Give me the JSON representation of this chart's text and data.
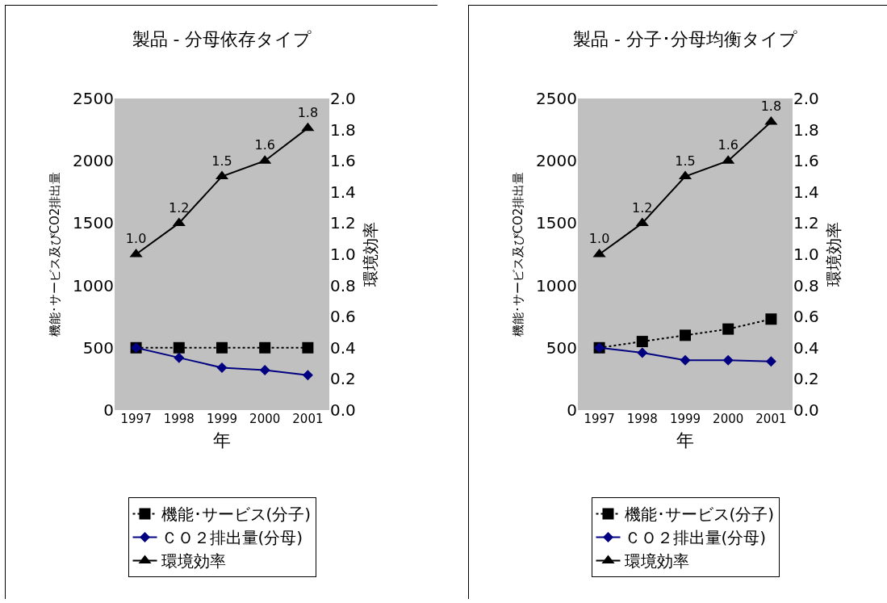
{
  "chart_data": [
    {
      "type": "line",
      "title": "製品 - 分母依存タイプ",
      "xlabel": "年",
      "ylabel": "機能･サービス及びCO2排出量",
      "y2label": "環境効率",
      "categories": [
        "1997",
        "1998",
        "1999",
        "2000",
        "2001"
      ],
      "ylim": [
        0,
        2500
      ],
      "yticks": [
        0,
        500,
        1000,
        1500,
        2000,
        2500
      ],
      "y2lim": [
        0,
        2
      ],
      "y2ticks": [
        {
          "value": 0,
          "label": "0.0"
        },
        0.2,
        0.4,
        0.6,
        0.8,
        {
          "value": 1,
          "label": "1.0"
        },
        1.2,
        1.4,
        1.6,
        1.8,
        {
          "value": 2,
          "label": "2.0"
        }
      ],
      "grid": false,
      "legend": "bottom",
      "series": [
        {
          "name": "機能･サービス(分子)",
          "color": "#000000",
          "marker": "square",
          "line_style": "dotted",
          "values": [
            500,
            500,
            500,
            500,
            500
          ]
        },
        {
          "name": "ＣＯ２排出量(分母)",
          "color": "#000080",
          "marker": "diamond",
          "line_style": "solid",
          "values": [
            500,
            420,
            340,
            320,
            280
          ]
        },
        {
          "name": "環境効率",
          "color": "#000000",
          "marker": "triangle",
          "line_style": "solid",
          "axis": "y2",
          "values": [
            1.0,
            1.2,
            1.5,
            1.6,
            1.81
          ],
          "value_labels": [
            "1.0",
            "1.2",
            "1.5",
            "1.6",
            "1.8"
          ]
        }
      ]
    },
    {
      "type": "line",
      "title": "製品 - 分子･分母均衡タイプ",
      "xlabel": "年",
      "ylabel": "機能･サービス及びCO2排出量",
      "y2label": "環境効率",
      "categories": [
        "1997",
        "1998",
        "1999",
        "2000",
        "2001"
      ],
      "ylim": [
        0,
        2500
      ],
      "yticks": [
        0,
        500,
        1000,
        1500,
        2000,
        2500
      ],
      "y2lim": [
        0,
        2
      ],
      "y2ticks": [
        {
          "value": 0,
          "label": "0.0"
        },
        0.2,
        0.4,
        0.6,
        0.8,
        {
          "value": 1,
          "label": "1.0"
        },
        1.2,
        1.4,
        1.6,
        1.8,
        {
          "value": 2,
          "label": "2.0"
        }
      ],
      "grid": false,
      "legend": "bottom",
      "series": [
        {
          "name": "機能･サービス(分子)",
          "color": "#000000",
          "marker": "square",
          "line_style": "dotted",
          "values": [
            500,
            550,
            600,
            650,
            730
          ]
        },
        {
          "name": "ＣＯ２排出量(分母)",
          "color": "#000080",
          "marker": "diamond",
          "line_style": "solid",
          "values": [
            500,
            460,
            400,
            400,
            390
          ]
        },
        {
          "name": "環境効率",
          "color": "#000000",
          "marker": "triangle",
          "line_style": "solid",
          "axis": "y2",
          "values": [
            1.0,
            1.2,
            1.5,
            1.6,
            1.85
          ],
          "value_labels": [
            "1.0",
            "1.2",
            "1.5",
            "1.6",
            "1.8"
          ]
        }
      ]
    }
  ]
}
